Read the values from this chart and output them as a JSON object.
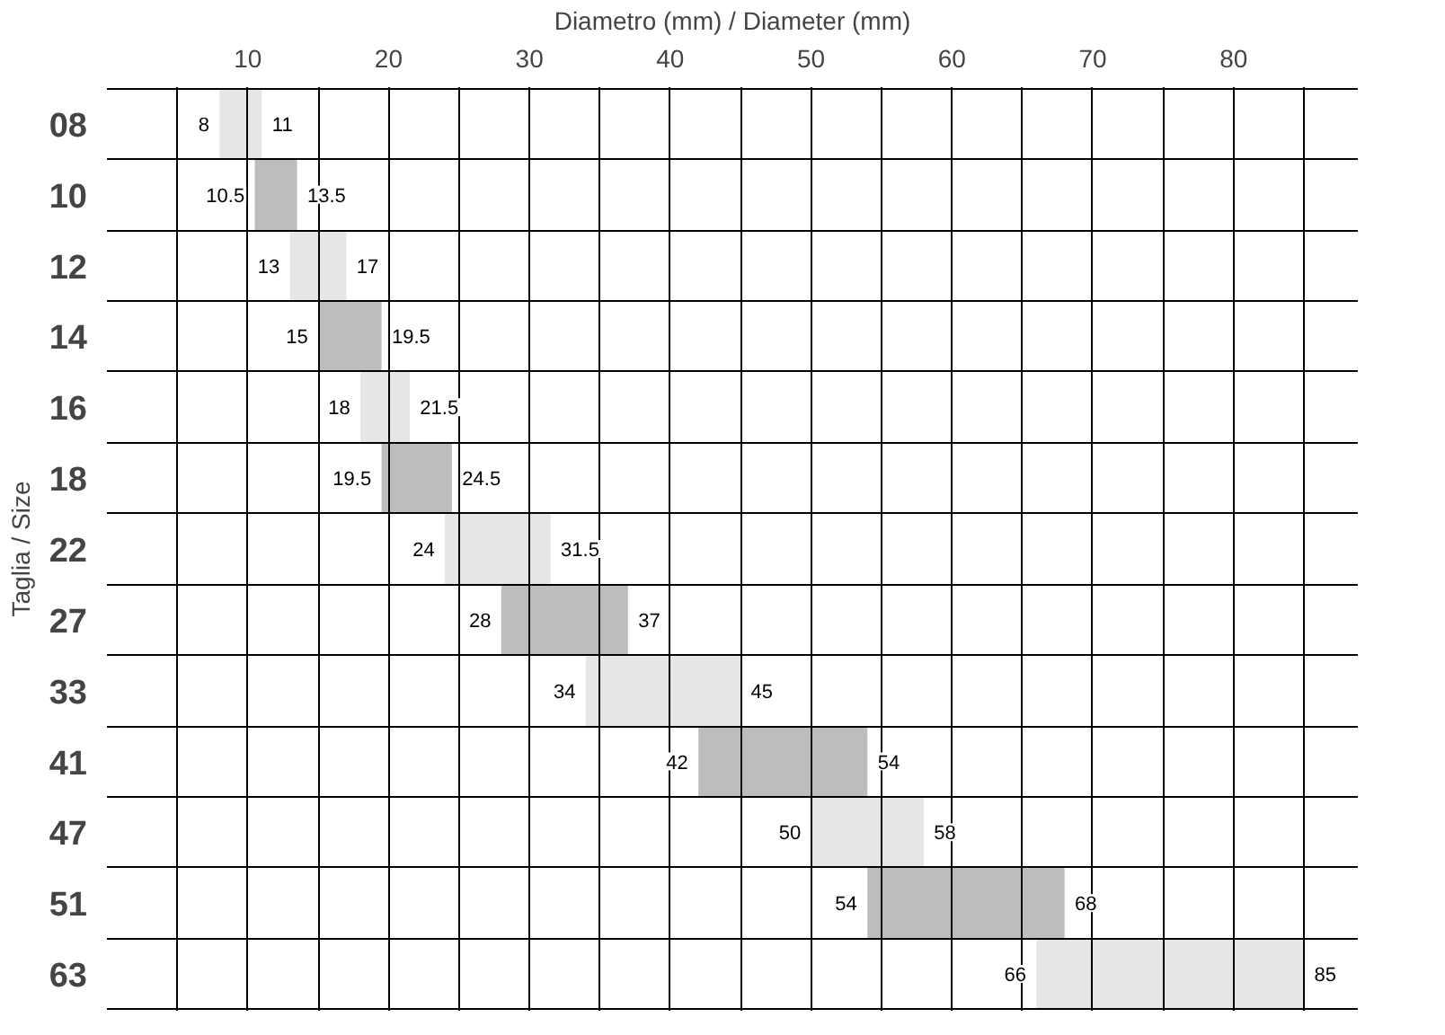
{
  "chart_data": {
    "type": "bar",
    "orientation": "horizontal",
    "xlabel": "Diametro (mm) / Diameter (mm)",
    "ylabel": "Taglia / Size",
    "categories": [
      "08",
      "10",
      "12",
      "14",
      "16",
      "18",
      "22",
      "27",
      "33",
      "41",
      "47",
      "51",
      "63"
    ],
    "base": [
      8,
      10.5,
      13,
      15,
      18,
      19.5,
      24,
      28,
      34,
      42,
      50,
      54,
      66
    ],
    "values": [
      3,
      3,
      4,
      4.5,
      3.5,
      5,
      7.5,
      9,
      11,
      12,
      8,
      14,
      19
    ],
    "colors": [
      "#e6e6e6",
      "#bdbdbd",
      "#e6e6e6",
      "#bdbdbd",
      "#e6e6e6",
      "#bdbdbd",
      "#e6e6e6",
      "#bdbdbd",
      "#e6e6e6",
      "#bdbdbd",
      "#e6e6e6",
      "#bdbdbd",
      "#e6e6e6"
    ],
    "xlim": [
      0,
      85
    ],
    "xticks": [
      {
        "value": 5,
        "label": null
      },
      10,
      {
        "value": 15,
        "label": null
      },
      20,
      {
        "value": 25,
        "label": null
      },
      30,
      {
        "value": 35,
        "label": null
      },
      40,
      {
        "value": 45,
        "label": null
      },
      50,
      {
        "value": 55,
        "label": null
      },
      60,
      {
        "value": 65,
        "label": null
      },
      70,
      {
        "value": 75,
        "label": null
      },
      80
    ],
    "grid": true,
    "annotations": [
      {
        "text": "8",
        "x": 8,
        "y": "08"
      },
      {
        "text": "11",
        "x": 11,
        "y": "08"
      },
      {
        "text": "10.5",
        "x": 10.5,
        "y": "10"
      },
      {
        "text": "13.5",
        "x": 13.5,
        "y": "10"
      },
      {
        "text": "13",
        "x": 13,
        "y": "12"
      },
      {
        "text": "17",
        "x": 17,
        "y": "12"
      },
      {
        "text": "15",
        "x": 15,
        "y": "14"
      },
      {
        "text": "19.5",
        "x": 19.5,
        "y": "14"
      },
      {
        "text": "18",
        "x": 18,
        "y": "16"
      },
      {
        "text": "21.5",
        "x": 21.5,
        "y": "16"
      },
      {
        "text": "19.5",
        "x": 19.5,
        "y": "18"
      },
      {
        "text": "24.5",
        "x": 24.5,
        "y": "18"
      },
      {
        "text": "24",
        "x": 24,
        "y": "22"
      },
      {
        "text": "31.5",
        "x": 31.5,
        "y": "22"
      },
      {
        "text": "28",
        "x": 28,
        "y": "27"
      },
      {
        "text": "37",
        "x": 37,
        "y": "27"
      },
      {
        "text": "34",
        "x": 34,
        "y": "33"
      },
      {
        "text": "45",
        "x": 45,
        "y": "33"
      },
      {
        "text": "42",
        "x": 42,
        "y": "41"
      },
      {
        "text": "54",
        "x": 54,
        "y": "41"
      },
      {
        "text": "50",
        "x": 50,
        "y": "47"
      },
      {
        "text": "58",
        "x": 58,
        "y": "47"
      },
      {
        "text": "54",
        "x": 54,
        "y": "51"
      },
      {
        "text": "68",
        "x": 68,
        "y": "51"
      },
      {
        "text": "66",
        "x": 66,
        "y": "63"
      },
      {
        "text": "85",
        "x": 85,
        "y": "63"
      }
    ]
  }
}
